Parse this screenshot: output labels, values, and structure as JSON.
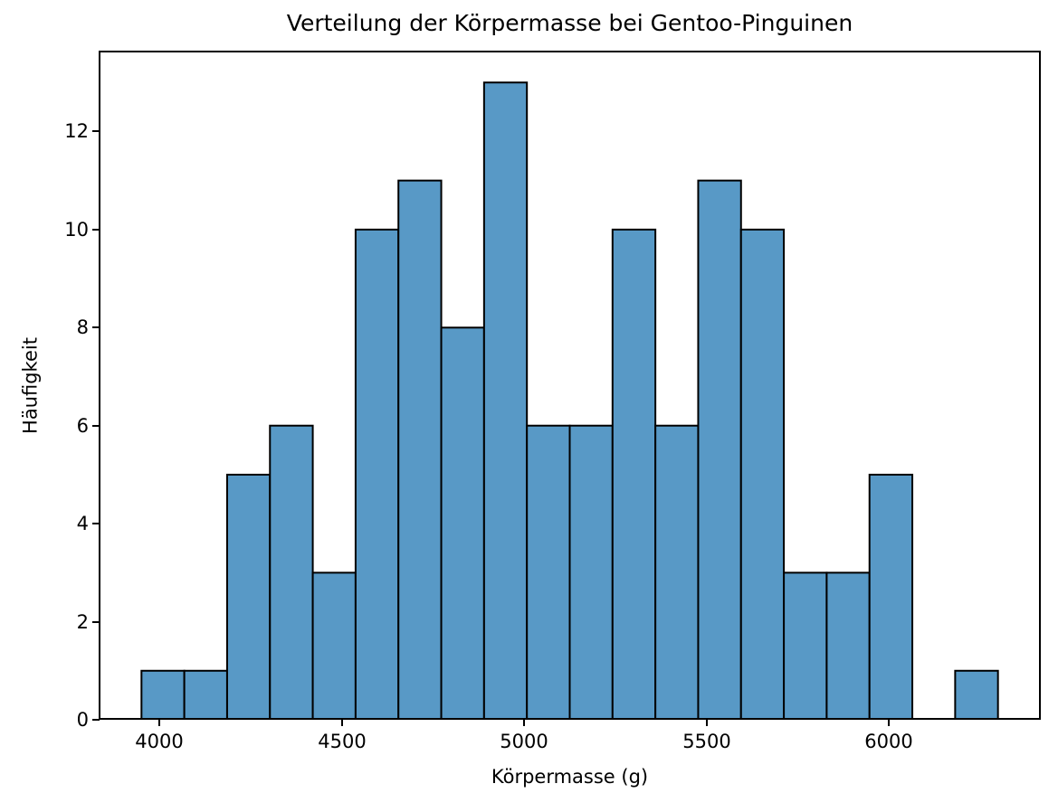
{
  "chart_data": {
    "type": "bar",
    "subtype": "histogram",
    "title": "Verteilung der Körpermasse bei Gentoo-Pinguinen",
    "xlabel": "Körpermasse (g)",
    "ylabel": "Häufigkeit",
    "bin_edges": [
      3950,
      4067.5,
      4185,
      4302.5,
      4420,
      4537.5,
      4655,
      4772.5,
      4890,
      5007.5,
      5125,
      5242.5,
      5360,
      5477.5,
      5595,
      5712.5,
      5830,
      5947.5,
      6065,
      6182.5,
      6300
    ],
    "counts": [
      1,
      1,
      5,
      6,
      3,
      10,
      11,
      8,
      13,
      6,
      6,
      10,
      6,
      11,
      10,
      3,
      3,
      5,
      0,
      1
    ],
    "xticks": [
      4000,
      4500,
      5000,
      5500,
      6000
    ],
    "yticks": [
      0,
      2,
      4,
      6,
      8,
      10,
      12
    ],
    "xlim": [
      3832.5,
      6417.5
    ],
    "ylim": [
      0,
      13.65
    ],
    "grid": false,
    "legend": null,
    "colors": {
      "bar_fill": "#5899C6",
      "bar_edge": "#000000",
      "spine": "#000000",
      "text": "#000000",
      "background": "#ffffff"
    }
  }
}
